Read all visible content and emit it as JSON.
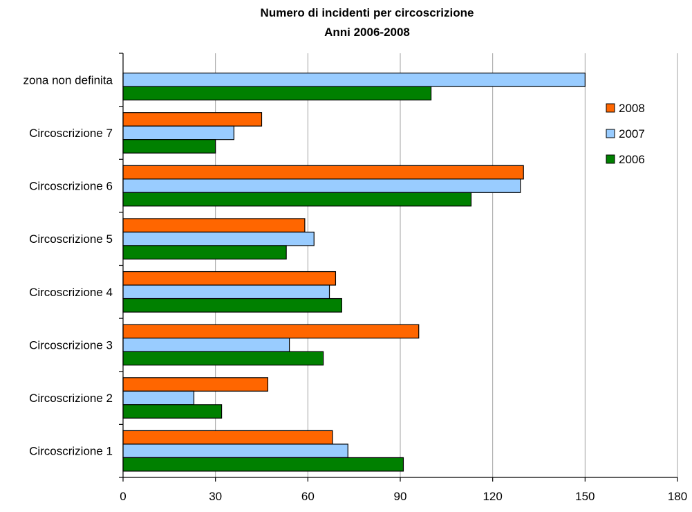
{
  "chart_data": {
    "type": "bar",
    "orientation": "horizontal",
    "title": [
      "Numero di incidenti per circoscrizione",
      "Anni 2006-2008"
    ],
    "categories": [
      "Circoscrizione 1",
      "Circoscrizione 2",
      "Circoscrizione 3",
      "Circoscrizione 4",
      "Circoscrizione 5",
      "Circoscrizione 6",
      "Circoscrizione 7",
      "zona non definita"
    ],
    "series": [
      {
        "name": "2008",
        "color": "#ff6600",
        "values": [
          68,
          47,
          96,
          69,
          59,
          130,
          45,
          null
        ]
      },
      {
        "name": "2007",
        "color": "#99ccff",
        "values": [
          73,
          23,
          54,
          67,
          62,
          129,
          36,
          150
        ]
      },
      {
        "name": "2006",
        "color": "#008000",
        "values": [
          91,
          32,
          65,
          71,
          53,
          113,
          30,
          100
        ]
      }
    ],
    "xlim": [
      0,
      180
    ],
    "xticks": [
      0,
      30,
      60,
      90,
      120,
      150,
      180
    ],
    "grid": "vertical",
    "legend": "right",
    "xlabel": "",
    "ylabel": ""
  }
}
